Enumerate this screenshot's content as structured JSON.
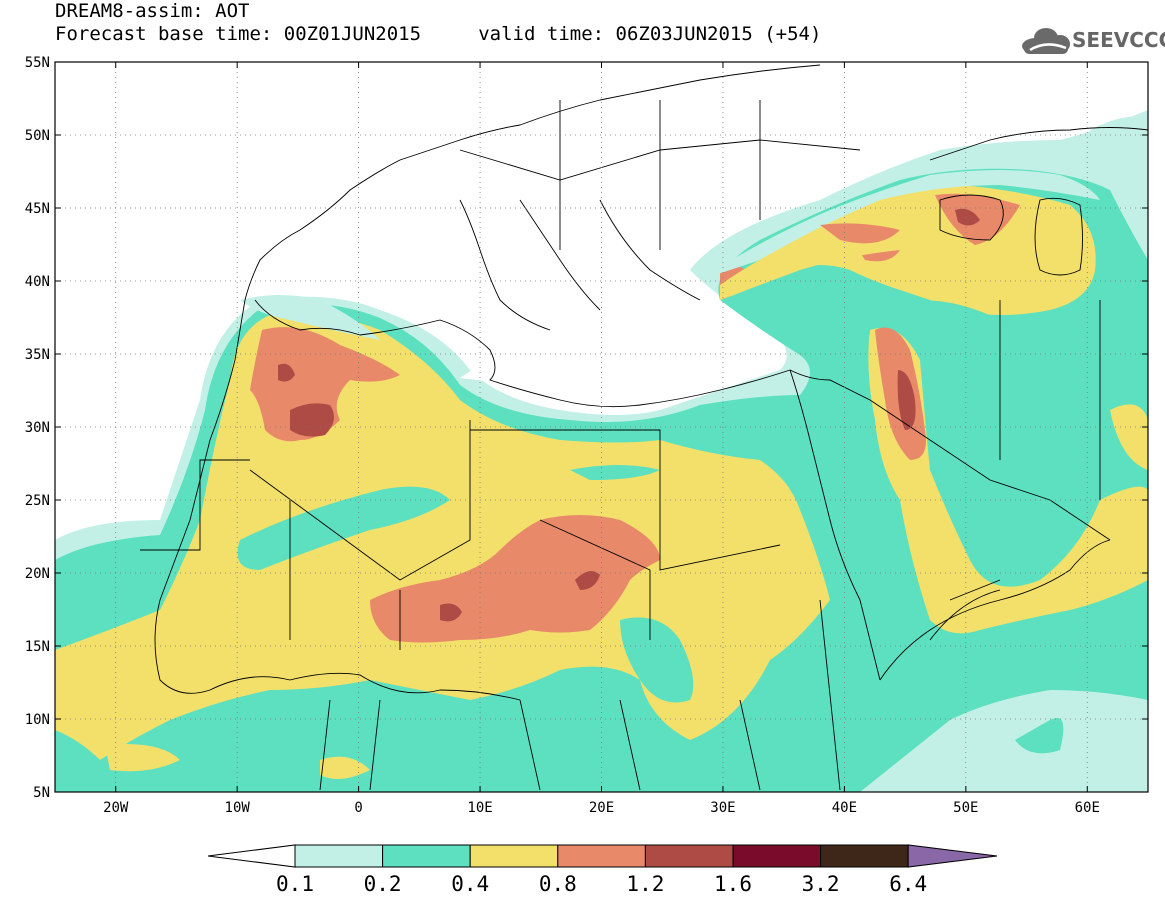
{
  "header": {
    "title": "DREAM8-assim: AOT",
    "forecast_line": "Forecast base time: 00Z01JUN2015     valid time: 06Z03JUN2015 (+54)",
    "logo_text": "SEEVCCC",
    "logo_icon": "cloud-icon"
  },
  "map": {
    "lon_range": [
      -25,
      65
    ],
    "lat_range": [
      5,
      55
    ],
    "lat_ticks": [
      {
        "value": 55,
        "label": "55N"
      },
      {
        "value": 50,
        "label": "50N"
      },
      {
        "value": 45,
        "label": "45N"
      },
      {
        "value": 40,
        "label": "40N"
      },
      {
        "value": 35,
        "label": "35N"
      },
      {
        "value": 30,
        "label": "30N"
      },
      {
        "value": 25,
        "label": "25N"
      },
      {
        "value": 20,
        "label": "20N"
      },
      {
        "value": 15,
        "label": "15N"
      },
      {
        "value": 10,
        "label": "10N"
      },
      {
        "value": 5,
        "label": "5N"
      }
    ],
    "lon_ticks": [
      {
        "value": -20,
        "label": "20W"
      },
      {
        "value": -10,
        "label": "10W"
      },
      {
        "value": 0,
        "label": "0"
      },
      {
        "value": 10,
        "label": "10E"
      },
      {
        "value": 20,
        "label": "20E"
      },
      {
        "value": 30,
        "label": "30E"
      },
      {
        "value": 40,
        "label": "40E"
      },
      {
        "value": 50,
        "label": "50E"
      },
      {
        "value": 60,
        "label": "60E"
      }
    ],
    "grid": true
  },
  "colorbar": {
    "levels": [
      "0.1",
      "0.2",
      "0.4",
      "0.8",
      "1.2",
      "1.6",
      "3.2",
      "6.4"
    ],
    "colors": [
      "#ffffff",
      "#c2f0e6",
      "#5ce0bf",
      "#f2e06b",
      "#e8896a",
      "#ae4b44",
      "#7a0b2a",
      "#3e2719",
      "#8a68a8"
    ]
  }
}
